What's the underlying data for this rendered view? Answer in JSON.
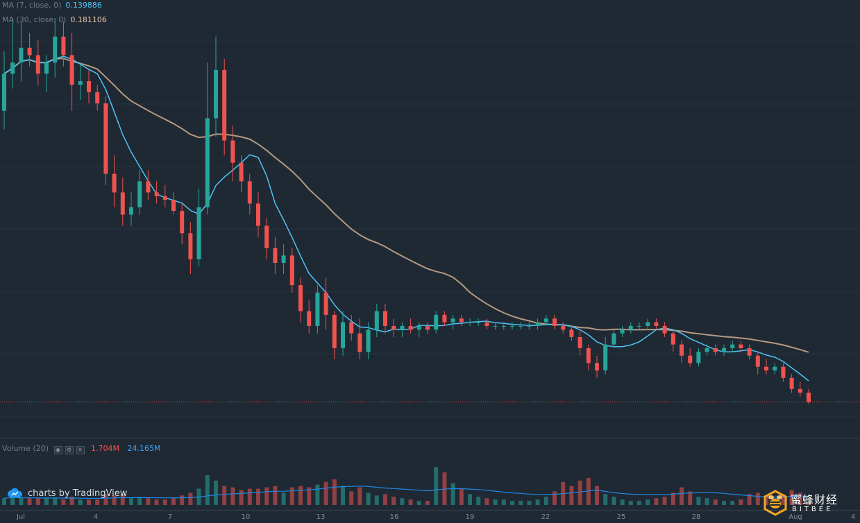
{
  "legend": {
    "ma7_name": "MA (7, close, 0)",
    "ma7_value": "0.139886",
    "ma30_name": "MA (30, close, 0)",
    "ma30_value": "0.181106",
    "volume_name": "Volume (20)",
    "volume_value": "1.704M",
    "volume_ma_value": "24.165M"
  },
  "branding": {
    "tradingview_text": "charts by TradingView",
    "watermark_cn": "蜜蜂财经",
    "watermark_en": "BITBEE"
  },
  "colors": {
    "background": "#1f2933",
    "up": "#26a69a",
    "down": "#ef5350",
    "ma7": "#4fc3f7",
    "ma30": "#b49a80",
    "volume_ma": "#1e88e5",
    "current_price_line": "#ef5350"
  },
  "chart_data": {
    "type": "candlestick",
    "interval": "4h",
    "x_labels": [
      "Jul",
      "4",
      "7",
      "10",
      "13",
      "16",
      "19",
      "22",
      "25",
      "28",
      "Aug",
      "4"
    ],
    "last_price": 0.1335,
    "ylim": [
      0.125,
      0.24
    ],
    "volume_ylim": [
      0,
      45
    ],
    "series": [
      {
        "name": "MA (7, close, 0)",
        "value": 0.139886
      },
      {
        "name": "MA (30, close, 0)",
        "value": 0.181106
      },
      {
        "name": "Volume (20)",
        "value": "1.704M",
        "ma": "24.165M"
      }
    ],
    "candles": [
      [
        0.212,
        0.228,
        0.207,
        0.222,
        5
      ],
      [
        0.222,
        0.237,
        0.218,
        0.225,
        6
      ],
      [
        0.225,
        0.236,
        0.22,
        0.229,
        5
      ],
      [
        0.229,
        0.233,
        0.224,
        0.227,
        5
      ],
      [
        0.227,
        0.231,
        0.219,
        0.222,
        5
      ],
      [
        0.222,
        0.227,
        0.217,
        0.225,
        5
      ],
      [
        0.225,
        0.237,
        0.221,
        0.232,
        5
      ],
      [
        0.232,
        0.236,
        0.224,
        0.227,
        4
      ],
      [
        0.227,
        0.233,
        0.212,
        0.219,
        6
      ],
      [
        0.219,
        0.225,
        0.215,
        0.22,
        4
      ],
      [
        0.22,
        0.223,
        0.214,
        0.217,
        4
      ],
      [
        0.217,
        0.219,
        0.212,
        0.214,
        4
      ],
      [
        0.214,
        0.216,
        0.192,
        0.195,
        8
      ],
      [
        0.195,
        0.2,
        0.186,
        0.19,
        7
      ],
      [
        0.19,
        0.194,
        0.181,
        0.184,
        8
      ],
      [
        0.184,
        0.19,
        0.181,
        0.186,
        5
      ],
      [
        0.186,
        0.196,
        0.184,
        0.193,
        6
      ],
      [
        0.193,
        0.196,
        0.188,
        0.19,
        5
      ],
      [
        0.19,
        0.193,
        0.187,
        0.189,
        4
      ],
      [
        0.189,
        0.192,
        0.186,
        0.188,
        4
      ],
      [
        0.188,
        0.19,
        0.184,
        0.185,
        5
      ],
      [
        0.185,
        0.187,
        0.176,
        0.179,
        7
      ],
      [
        0.179,
        0.182,
        0.168,
        0.172,
        9
      ],
      [
        0.172,
        0.191,
        0.17,
        0.186,
        12
      ],
      [
        0.186,
        0.225,
        0.184,
        0.21,
        22
      ],
      [
        0.21,
        0.232,
        0.205,
        0.223,
        18
      ],
      [
        0.223,
        0.226,
        0.2,
        0.204,
        14
      ],
      [
        0.204,
        0.208,
        0.193,
        0.198,
        13
      ],
      [
        0.198,
        0.2,
        0.19,
        0.193,
        11
      ],
      [
        0.193,
        0.195,
        0.184,
        0.187,
        12
      ],
      [
        0.187,
        0.19,
        0.178,
        0.181,
        12
      ],
      [
        0.181,
        0.183,
        0.172,
        0.175,
        13
      ],
      [
        0.175,
        0.178,
        0.168,
        0.171,
        14
      ],
      [
        0.171,
        0.176,
        0.168,
        0.173,
        9
      ],
      [
        0.173,
        0.175,
        0.163,
        0.165,
        13
      ],
      [
        0.165,
        0.167,
        0.155,
        0.158,
        14
      ],
      [
        0.158,
        0.161,
        0.152,
        0.154,
        13
      ],
      [
        0.154,
        0.165,
        0.152,
        0.163,
        15
      ],
      [
        0.163,
        0.167,
        0.153,
        0.157,
        17
      ],
      [
        0.157,
        0.158,
        0.145,
        0.148,
        19
      ],
      [
        0.148,
        0.158,
        0.146,
        0.155,
        14
      ],
      [
        0.155,
        0.157,
        0.15,
        0.152,
        10
      ],
      [
        0.152,
        0.156,
        0.145,
        0.147,
        13
      ],
      [
        0.147,
        0.155,
        0.145,
        0.153,
        9
      ],
      [
        0.153,
        0.16,
        0.151,
        0.158,
        7
      ],
      [
        0.158,
        0.16,
        0.152,
        0.154,
        8
      ],
      [
        0.154,
        0.156,
        0.151,
        0.153,
        6
      ],
      [
        0.153,
        0.155,
        0.151,
        0.154,
        5
      ],
      [
        0.154,
        0.156,
        0.152,
        0.153,
        4
      ],
      [
        0.153,
        0.155,
        0.151,
        0.154,
        3
      ],
      [
        0.154,
        0.155,
        0.152,
        0.153,
        3
      ],
      [
        0.153,
        0.158,
        0.152,
        0.157,
        28
      ],
      [
        0.157,
        0.158,
        0.154,
        0.155,
        24
      ],
      [
        0.155,
        0.157,
        0.153,
        0.156,
        16
      ],
      [
        0.156,
        0.157,
        0.154,
        0.155,
        12
      ],
      [
        0.155,
        0.156,
        0.154,
        0.155,
        8
      ],
      [
        0.155,
        0.156,
        0.154,
        0.155,
        6
      ],
      [
        0.155,
        0.156,
        0.153,
        0.154,
        5
      ],
      [
        0.154,
        0.155,
        0.153,
        0.154,
        4
      ],
      [
        0.154,
        0.155,
        0.153,
        0.154,
        4
      ],
      [
        0.154,
        0.155,
        0.153,
        0.154,
        3
      ],
      [
        0.154,
        0.155,
        0.153,
        0.154,
        3
      ],
      [
        0.154,
        0.155,
        0.153,
        0.154,
        3
      ],
      [
        0.154,
        0.156,
        0.153,
        0.155,
        4
      ],
      [
        0.155,
        0.157,
        0.154,
        0.156,
        6
      ],
      [
        0.156,
        0.157,
        0.153,
        0.154,
        10
      ],
      [
        0.154,
        0.155,
        0.152,
        0.153,
        17
      ],
      [
        0.153,
        0.154,
        0.15,
        0.151,
        14
      ],
      [
        0.151,
        0.153,
        0.146,
        0.148,
        18
      ],
      [
        0.148,
        0.149,
        0.142,
        0.144,
        20
      ],
      [
        0.144,
        0.146,
        0.14,
        0.142,
        14
      ],
      [
        0.142,
        0.151,
        0.141,
        0.149,
        8
      ],
      [
        0.149,
        0.153,
        0.148,
        0.152,
        6
      ],
      [
        0.152,
        0.154,
        0.151,
        0.153,
        4
      ],
      [
        0.153,
        0.155,
        0.152,
        0.154,
        3
      ],
      [
        0.154,
        0.155,
        0.153,
        0.154,
        3
      ],
      [
        0.154,
        0.156,
        0.153,
        0.155,
        4
      ],
      [
        0.155,
        0.156,
        0.153,
        0.154,
        5
      ],
      [
        0.154,
        0.155,
        0.151,
        0.152,
        6
      ],
      [
        0.152,
        0.153,
        0.147,
        0.149,
        9
      ],
      [
        0.149,
        0.15,
        0.144,
        0.146,
        13
      ],
      [
        0.146,
        0.148,
        0.143,
        0.144,
        10
      ],
      [
        0.144,
        0.148,
        0.143,
        0.147,
        6
      ],
      [
        0.147,
        0.149,
        0.146,
        0.148,
        5
      ],
      [
        0.148,
        0.149,
        0.146,
        0.147,
        4
      ],
      [
        0.147,
        0.149,
        0.146,
        0.148,
        3
      ],
      [
        0.148,
        0.15,
        0.147,
        0.149,
        3
      ],
      [
        0.149,
        0.15,
        0.147,
        0.148,
        4
      ],
      [
        0.148,
        0.149,
        0.145,
        0.146,
        8
      ],
      [
        0.146,
        0.147,
        0.141,
        0.143,
        9
      ],
      [
        0.143,
        0.145,
        0.141,
        0.142,
        7
      ],
      [
        0.142,
        0.144,
        0.141,
        0.143,
        5
      ],
      [
        0.143,
        0.144,
        0.139,
        0.14,
        8
      ],
      [
        0.14,
        0.141,
        0.136,
        0.137,
        11
      ],
      [
        0.137,
        0.139,
        0.135,
        0.136,
        9
      ],
      [
        0.136,
        0.137,
        0.133,
        0.1335,
        2
      ]
    ]
  }
}
